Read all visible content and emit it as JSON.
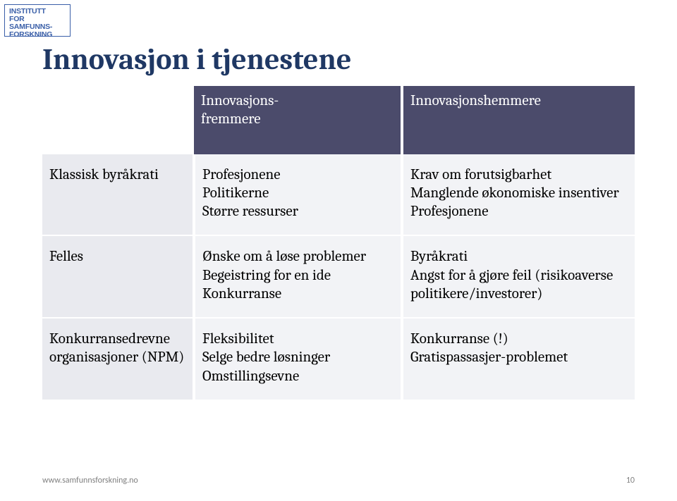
{
  "logo": {
    "line1": "INSTITUTT",
    "line2": "FOR SAMFUNNS-",
    "line3": "FORSKNING"
  },
  "title": "Innovasjon i tjenestene",
  "colors": {
    "title_color": "#1f3864",
    "header_bg": "#4b4b6b",
    "header_text": "#ffffff",
    "col1_bg": "#e9eaef",
    "col23_bg": "#f2f3f6",
    "logo_border": "#3a5fa8",
    "footer_color": "#7f7f7f"
  },
  "table": {
    "type": "table",
    "headers": [
      "",
      "Innovasjons-\nfremmere",
      "Innovasjonshemmere"
    ],
    "rows": [
      {
        "label": "Klassisk byråkrati",
        "fremmere": "Profesjonene\nPolitikerne\nStørre ressurser",
        "hemmere": "Krav om forutsigbarhet\nManglende økonomiske insentiver\nProfesjonene"
      },
      {
        "label": "Felles",
        "fremmere": "Ønske om å løse problemer\nBegeistring for en ide\nKonkurranse",
        "hemmere": "Byråkrati\nAngst for å gjøre feil (risikoaverse politikere/investorer)"
      },
      {
        "label": "Konkurransedrevne organisasjoner (NPM)",
        "fremmere": "Fleksibilitet\nSelge bedre løsninger\nOmstillingsevne",
        "hemmere": "Konkurranse (!)\nGratispassasjer-problemet"
      }
    ]
  },
  "footer": {
    "url": "www.samfunnsforskning.no",
    "page": "10"
  }
}
